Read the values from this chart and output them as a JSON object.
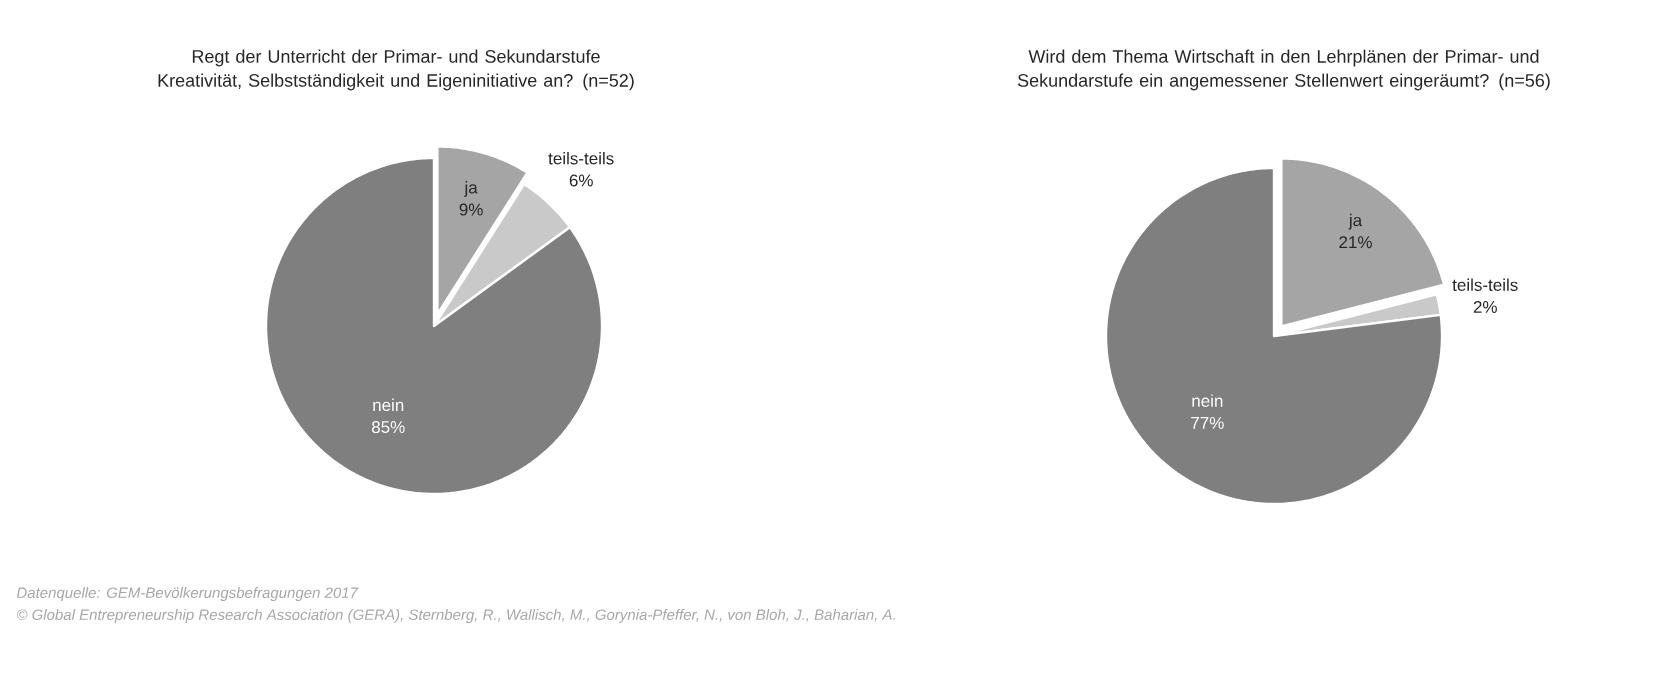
{
  "chart_data": [
    {
      "type": "pie",
      "title": "Regt der Unterricht der Primar- und Sekundarstufe Kreativität, Selbstständigkeit und Eigeninitiative an? (n=52)",
      "categories": [
        "ja",
        "teils-teils",
        "nein"
      ],
      "values": [
        9,
        6,
        85
      ],
      "value_labels": [
        "9%",
        "6%",
        "85%"
      ],
      "colors": [
        "#a5a5a5",
        "#c9c9c9",
        "#7f7f7f"
      ],
      "annotations": [
        "Datenquelle: GEM-Bevölkerungsbefragungen 2017",
        "© Global Entrepreneurship Research Association (GERA), Sternberg, R., Wallisch, M., Gorynia-Pfeffer, N., von Bloh, J., Baharian, A."
      ]
    },
    {
      "type": "pie",
      "title": "Wird dem Thema Wirtschaft in den Lehrplänen der Primar- und Sekundarstufe ein angemessener Stellenwert eingeräumt? (n=56)",
      "categories": [
        "ja",
        "teils-teils",
        "nein"
      ],
      "values": [
        21,
        2,
        77
      ],
      "value_labels": [
        "21%",
        "2%",
        "77%"
      ],
      "colors": [
        "#a5a5a5",
        "#c9c9c9",
        "#7f7f7f"
      ]
    }
  ]
}
